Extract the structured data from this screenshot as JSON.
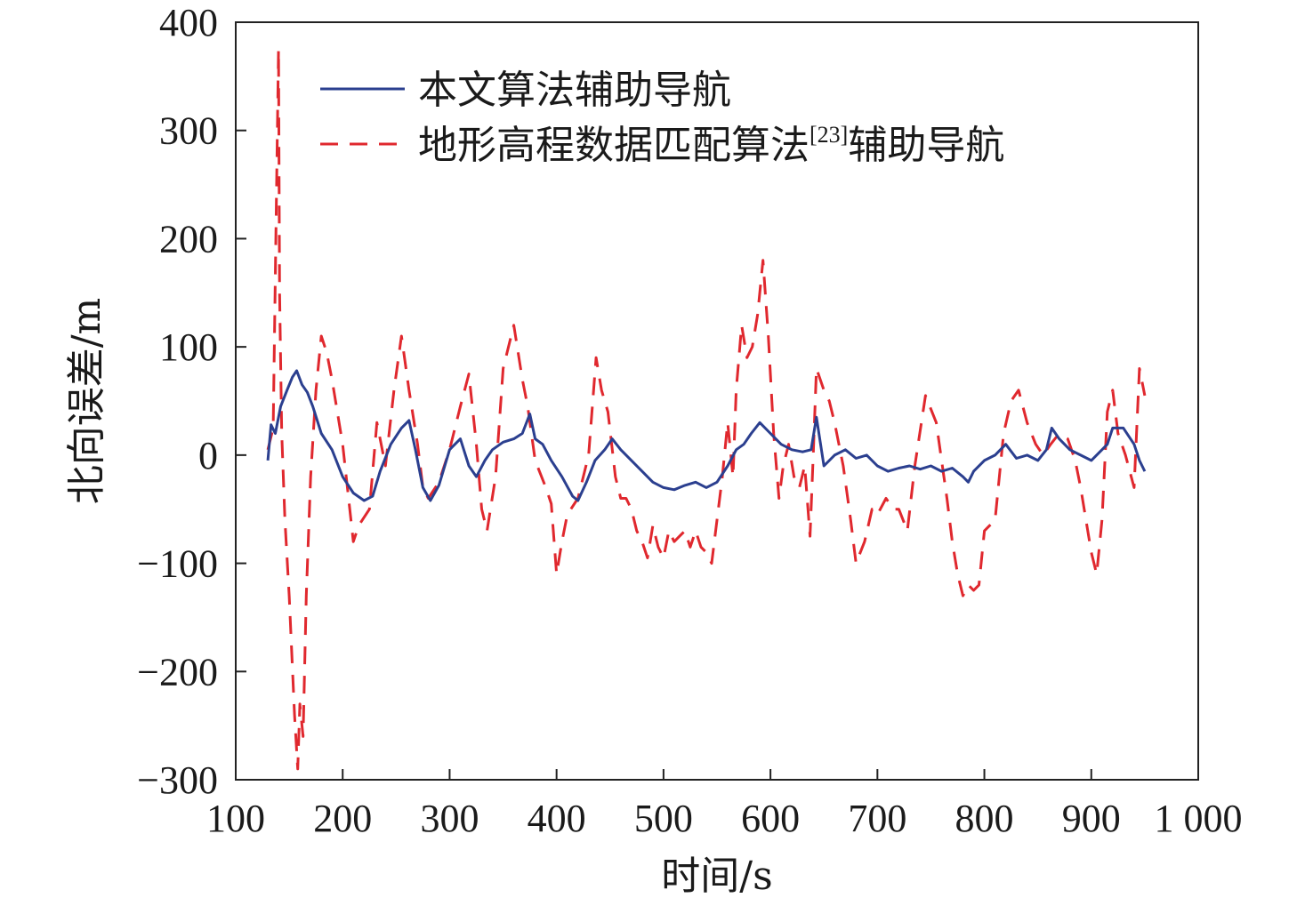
{
  "chart_data": {
    "type": "line",
    "xlabel": "时间/s",
    "ylabel": "北向误差/m",
    "xlim": [
      100,
      1000
    ],
    "ylim": [
      -300,
      400
    ],
    "xticks": [
      100,
      200,
      300,
      400,
      500,
      600,
      700,
      800,
      900,
      1000
    ],
    "xtick_labels": [
      "100",
      "200",
      "300",
      "400",
      "500",
      "600",
      "700",
      "800",
      "900",
      "1 000"
    ],
    "yticks": [
      -300,
      -200,
      -100,
      0,
      100,
      200,
      300,
      400
    ],
    "ytick_labels": [
      "−300",
      "−200",
      "−100",
      "0",
      "100",
      "200",
      "300",
      "400"
    ],
    "grid": false,
    "legend_position": "top-left",
    "series": [
      {
        "name": "本文算法辅助导航",
        "legend_main": "本文算法辅助导航",
        "color": "#2b3f8f",
        "style": "solid",
        "x": [
          130,
          133,
          137,
          142,
          148,
          153,
          157,
          162,
          167,
          172,
          180,
          190,
          200,
          210,
          220,
          228,
          235,
          245,
          255,
          262,
          268,
          275,
          282,
          290,
          300,
          310,
          318,
          325,
          333,
          340,
          350,
          360,
          368,
          375,
          380,
          387,
          395,
          405,
          415,
          420,
          428,
          436,
          445,
          452,
          460,
          470,
          480,
          490,
          500,
          510,
          520,
          530,
          540,
          550,
          560,
          568,
          575,
          582,
          590,
          600,
          610,
          620,
          630,
          638,
          643,
          650,
          660,
          670,
          680,
          690,
          700,
          710,
          720,
          730,
          740,
          750,
          760,
          770,
          780,
          785,
          790,
          800,
          810,
          820,
          830,
          840,
          850,
          858,
          863,
          870,
          880,
          890,
          900,
          910,
          915,
          920,
          930,
          940,
          945,
          950
        ],
        "y": [
          -5,
          28,
          20,
          45,
          60,
          72,
          78,
          65,
          58,
          45,
          20,
          5,
          -20,
          -35,
          -42,
          -38,
          -15,
          10,
          25,
          32,
          5,
          -30,
          -42,
          -28,
          5,
          15,
          -10,
          -20,
          -5,
          5,
          12,
          15,
          20,
          38,
          15,
          10,
          -5,
          -20,
          -38,
          -42,
          -25,
          -5,
          5,
          15,
          5,
          -5,
          -15,
          -25,
          -30,
          -32,
          -28,
          -25,
          -30,
          -25,
          -10,
          5,
          10,
          20,
          30,
          20,
          10,
          5,
          3,
          5,
          35,
          -10,
          0,
          5,
          -3,
          0,
          -10,
          -15,
          -12,
          -10,
          -13,
          -10,
          -15,
          -12,
          -20,
          -25,
          -15,
          -5,
          0,
          10,
          -3,
          0,
          -5,
          5,
          25,
          15,
          5,
          0,
          -5,
          5,
          10,
          25,
          25,
          10,
          -5,
          -15
        ]
      },
      {
        "name": "地形高程数据匹配算法[23]辅助导航",
        "legend_main": "地形高程数据匹配算法",
        "legend_sup": "[23]",
        "legend_tail": "辅助导航",
        "color": "#e0282e",
        "style": "dashed",
        "x": [
          130,
          135,
          140,
          141,
          143,
          146,
          150,
          155,
          158,
          160,
          163,
          166,
          170,
          175,
          180,
          185,
          190,
          200,
          210,
          215,
          225,
          232,
          240,
          248,
          255,
          262,
          270,
          275,
          280,
          290,
          300,
          310,
          318,
          325,
          330,
          335,
          343,
          350,
          355,
          360,
          368,
          373,
          380,
          390,
          395,
          400,
          405,
          410,
          420,
          430,
          437,
          442,
          448,
          455,
          460,
          465,
          470,
          475,
          480,
          485,
          490,
          495,
          500,
          505,
          510,
          515,
          520,
          525,
          530,
          535,
          540,
          545,
          550,
          555,
          560,
          565,
          568,
          573,
          578,
          583,
          588,
          593,
          598,
          603,
          608,
          612,
          617,
          622,
          627,
          632,
          637,
          640,
          643,
          650,
          655,
          660,
          668,
          675,
          680,
          688,
          695,
          700,
          708,
          715,
          720,
          728,
          735,
          745,
          755,
          765,
          770,
          775,
          780,
          785,
          790,
          795,
          800,
          810,
          818,
          825,
          832,
          840,
          848,
          855,
          862,
          870,
          878,
          885,
          890,
          895,
          900,
          905,
          910,
          915,
          920,
          925,
          932,
          940,
          945,
          950
        ],
        "y": [
          5,
          25,
          375,
          150,
          20,
          -60,
          -130,
          -240,
          -290,
          -230,
          -260,
          -130,
          -20,
          60,
          110,
          95,
          70,
          10,
          -80,
          -65,
          -50,
          30,
          -10,
          60,
          110,
          60,
          10,
          -30,
          -40,
          -25,
          5,
          45,
          75,
          10,
          -50,
          -70,
          -20,
          80,
          100,
          120,
          70,
          45,
          -5,
          -30,
          -45,
          -110,
          -80,
          -55,
          -40,
          0,
          90,
          60,
          40,
          -20,
          -40,
          -40,
          -50,
          -70,
          -80,
          -95,
          -65,
          -85,
          -95,
          -70,
          -80,
          -75,
          -70,
          -85,
          -70,
          -85,
          -90,
          -100,
          -60,
          -20,
          30,
          -20,
          60,
          120,
          90,
          100,
          130,
          180,
          110,
          20,
          -40,
          -10,
          10,
          -20,
          -30,
          -10,
          -75,
          0,
          80,
          60,
          50,
          30,
          -10,
          -60,
          -100,
          -80,
          -50,
          -55,
          -40,
          -50,
          -50,
          -70,
          -10,
          55,
          30,
          -40,
          -80,
          -110,
          -130,
          -120,
          -125,
          -120,
          -70,
          -60,
          20,
          50,
          60,
          30,
          10,
          0,
          10,
          20,
          15,
          -5,
          -30,
          -60,
          -90,
          -110,
          -60,
          40,
          60,
          20,
          0,
          -30,
          80,
          55
        ]
      }
    ]
  }
}
